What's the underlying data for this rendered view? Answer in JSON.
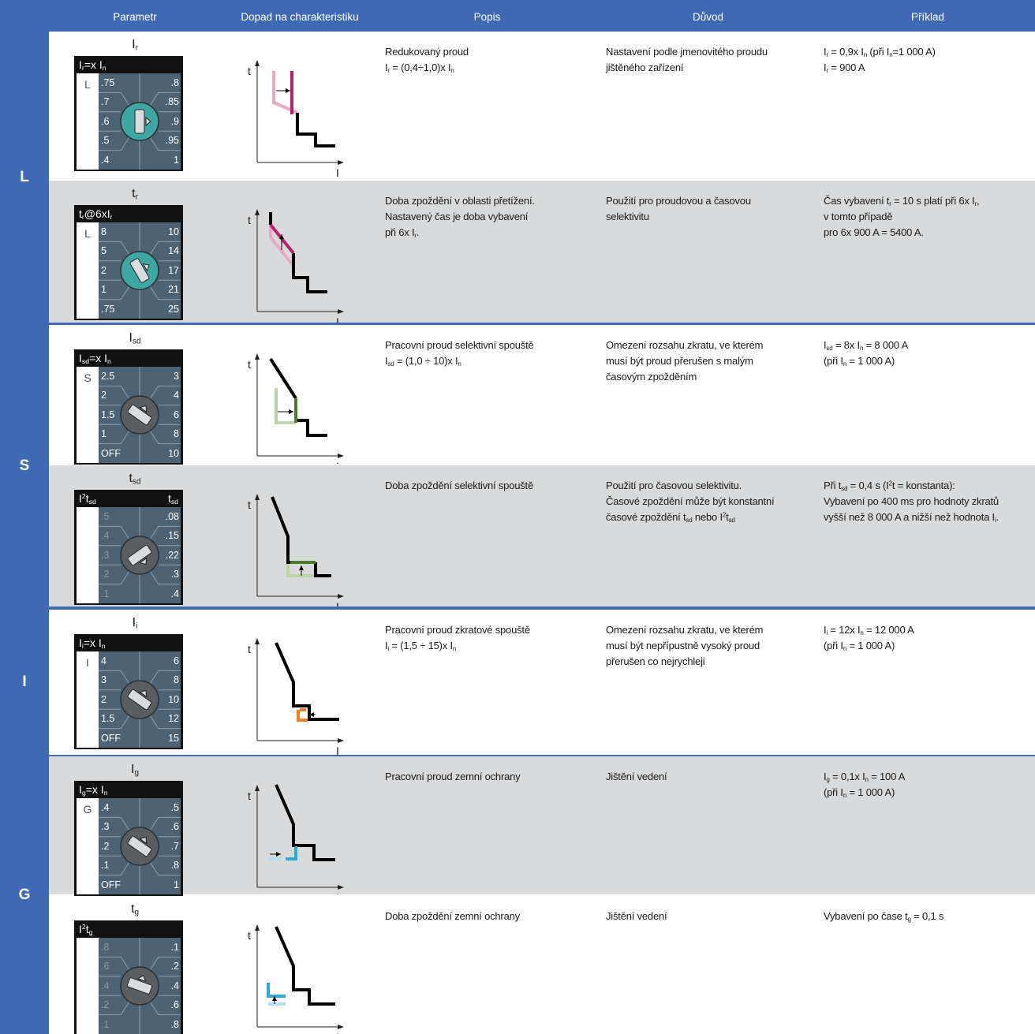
{
  "header": [
    "Parametr",
    "Dopad na charakteristiku",
    "Popis",
    "Důvod",
    "Příklad"
  ],
  "curve_axes": {
    "y": "t",
    "x": "I"
  },
  "groups": [
    {
      "label": "L",
      "rows": [
        {
          "param": [
            "I",
            {
              "sub": "r"
            }
          ],
          "dial": {
            "title": [
              "I",
              {
                "sub": "r"
              },
              "=x I",
              {
                "sub": "n"
              }
            ],
            "side": "L",
            "left": [
              ".75",
              ".7",
              ".6",
              ".5",
              ".4"
            ],
            "right": [
              ".8",
              ".85",
              ".9",
              ".95",
              "1"
            ]
          },
          "popis": [
            [
              "Redukovaný proud"
            ],
            [
              "I",
              {
                "sub": "r"
              },
              " = (0,4÷1,0)x I",
              {
                "sub": "n"
              }
            ]
          ],
          "duvod": [
            [
              "Nastavení podle jmenovitého proudu"
            ],
            [
              "jištěného zařízení"
            ]
          ],
          "priklad": [
            [
              "I",
              {
                "sub": "r"
              },
              " = 0,9x I",
              {
                "sub": "n"
              },
              " (při I",
              {
                "sub": "n"
              },
              "=1 000 A)"
            ],
            [
              "I",
              {
                "sub": "r"
              },
              " = 900 A"
            ]
          ]
        },
        {
          "param": [
            "t",
            {
              "sub": "r"
            }
          ],
          "dial": {
            "title": [
              "t",
              {
                "sub": "r"
              },
              "@6xI",
              {
                "sub": "r"
              }
            ],
            "side": "L",
            "left": [
              "8",
              "5",
              "2",
              "1",
              ".75"
            ],
            "right": [
              "10",
              "14",
              "17",
              "21",
              "25"
            ]
          },
          "popis": [
            [
              "Doba zpoždění v oblasti přetížení."
            ],
            [
              "Nastavený čas je doba vybavení"
            ],
            [
              "při 6x I",
              {
                "sub": "r"
              },
              "."
            ]
          ],
          "duvod": [
            [
              "Použití pro proudovou a časovou"
            ],
            [
              "selektivitu"
            ]
          ],
          "priklad": [
            [
              "Čas vybavení t",
              {
                "sub": "r"
              },
              " = 10 s platí při 6x I",
              {
                "sub": "r"
              },
              ","
            ],
            [
              "v tomto případě"
            ],
            [
              "pro 6x 900 A = 5400 A."
            ]
          ]
        }
      ]
    },
    {
      "label": "S",
      "rows": [
        {
          "param": [
            "I",
            {
              "sub": "sd"
            }
          ],
          "dial": {
            "title": [
              "I",
              {
                "sub": "sd"
              },
              "=x I",
              {
                "sub": "n"
              }
            ],
            "side": "S",
            "left": [
              "2.5",
              "2",
              "1.5",
              "1",
              "OFF"
            ],
            "right": [
              "3",
              "4",
              "6",
              "8",
              "10"
            ]
          },
          "popis": [
            [
              "Pracovní proud selektivní spouště"
            ],
            [
              "I",
              {
                "sub": "sd"
              },
              " = (1,0 ÷ 10)x I",
              {
                "sub": "n"
              }
            ]
          ],
          "duvod": [
            [
              "Omezení rozsahu zkratu, ve kterém"
            ],
            [
              "musí být proud přerušen s malým"
            ],
            [
              "časovým zpožděním"
            ]
          ],
          "priklad": [
            [
              "I",
              {
                "sub": "sd"
              },
              " = 8x I",
              {
                "sub": "n"
              },
              " = 8 000 A"
            ],
            [
              "(při I",
              {
                "sub": "n"
              },
              " = 1 000 A)"
            ]
          ]
        },
        {
          "param": [
            "t",
            {
              "sub": "sd"
            }
          ],
          "dial": {
            "title": [
              "I",
              {
                "sup": "2"
              },
              "t",
              {
                "sub": "sd"
              }
            ],
            "title_right": [
              "t",
              {
                "sub": "sd"
              }
            ],
            "left": [
              ".5",
              ".4",
              ".3",
              ".2",
              ".1"
            ],
            "right": [
              ".08",
              ".15",
              ".22",
              ".3",
              ".4"
            ]
          },
          "popis": [
            [
              "Doba zpoždění selektivní spouště"
            ]
          ],
          "duvod": [
            [
              "Použití pro časovou selektivitu."
            ],
            [
              "Časové zpoždění může být konstantní"
            ],
            [
              "časové zpoždění t",
              {
                "sub": "sd"
              },
              " nebo I",
              {
                "sup": "2"
              },
              "t",
              {
                "sub": "sd"
              }
            ]
          ],
          "priklad": [
            [
              "Při t",
              {
                "sub": "sd"
              },
              " = 0,4 s (I",
              {
                "sup": "2"
              },
              "t = konstanta):"
            ],
            [
              "Vybavení po 400 ms pro hodnoty zkratů"
            ],
            [
              "vyšší než 8 000 A a nižší než hodnota I",
              {
                "sub": "i"
              },
              "."
            ]
          ]
        }
      ]
    },
    {
      "label": "I",
      "rows": [
        {
          "param": [
            "I",
            {
              "sub": "i"
            }
          ],
          "dial": {
            "title": [
              "I",
              {
                "sub": "i"
              },
              "=x I",
              {
                "sub": "n"
              }
            ],
            "side": "I",
            "left": [
              "4",
              "3",
              "2",
              "1.5",
              "OFF"
            ],
            "right": [
              "6",
              "8",
              "10",
              "12",
              "15"
            ]
          },
          "popis": [
            [
              "Pracovní proud zkratové spouště"
            ],
            [
              "I",
              {
                "sub": "i"
              },
              " = (1,5 ÷ 15)x I",
              {
                "sub": "n"
              }
            ]
          ],
          "duvod": [
            [
              "Omezení rozsahu zkratu, ve kterém"
            ],
            [
              "musí být nepřípustně vysoký proud"
            ],
            [
              "přerušen co nejrychleji"
            ]
          ],
          "priklad": [
            [
              "I",
              {
                "sub": "i"
              },
              " = 12x I",
              {
                "sub": "n"
              },
              " = 12 000 A"
            ],
            [
              "(při I",
              {
                "sub": "n"
              },
              " = 1 000 A)"
            ]
          ]
        }
      ]
    },
    {
      "label": "G",
      "rows": [
        {
          "param": [
            "I",
            {
              "sub": "g"
            }
          ],
          "dial": {
            "title": [
              "I",
              {
                "sub": "g"
              },
              "=x I",
              {
                "sub": "n"
              }
            ],
            "side": "G",
            "left": [
              ".4",
              ".3",
              ".2",
              ".1",
              "OFF"
            ],
            "right": [
              ".5",
              ".6",
              ".7",
              ".8",
              "1"
            ]
          },
          "popis": [
            [
              "Pracovní proud zemní ochrany"
            ]
          ],
          "duvod": [
            [
              "Jištění vedení"
            ]
          ],
          "priklad": [
            [
              "I",
              {
                "sub": "g"
              },
              " = 0,1x I",
              {
                "sub": "n"
              },
              " = 100 A"
            ],
            [
              "(při I",
              {
                "sub": "n"
              },
              " = 1 000 A)"
            ]
          ]
        },
        {
          "param": [
            "t",
            {
              "sub": "g"
            }
          ],
          "dial": {
            "title": [
              "I",
              {
                "sup": "2"
              },
              "t",
              {
                "sub": "g"
              }
            ],
            "left": [
              ".8",
              ".6",
              ".4",
              ".2",
              ".1"
            ],
            "right": [
              ".1",
              ".2",
              ".4",
              ".6",
              ".8"
            ]
          },
          "popis": [
            [
              "Doba zpoždění zemní ochrany"
            ]
          ],
          "duvod": [
            [
              "Jištění vedení"
            ]
          ],
          "priklad": [
            [
              "Vybavení po čase t",
              {
                "sub": "g"
              },
              " = 0,1 s"
            ]
          ]
        }
      ]
    }
  ]
}
